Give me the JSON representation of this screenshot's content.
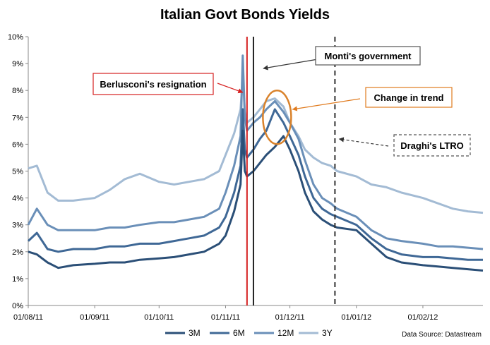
{
  "chart_data": {
    "type": "line",
    "title": "Italian Govt Bonds Yields",
    "source": "Data Source: Datastream",
    "xlabel": "",
    "ylabel": "",
    "x_range": [
      "01/08/11",
      "29/02/12"
    ],
    "x_ticks": [
      "01/08/11",
      "01/09/11",
      "01/10/11",
      "01/11/11",
      "01/12/11",
      "01/01/12",
      "01/02/12"
    ],
    "ylim": [
      0,
      10
    ],
    "y_ticks": [
      "0%",
      "1%",
      "2%",
      "3%",
      "4%",
      "5%",
      "6%",
      "7%",
      "8%",
      "9%",
      "10%"
    ],
    "grid": false,
    "legend_position": "bottom",
    "series": [
      {
        "name": "3M",
        "color": "#2b4f77",
        "x": [
          "01/08/11",
          "05/08/11",
          "10/08/11",
          "15/08/11",
          "22/08/11",
          "01/09/11",
          "08/09/11",
          "15/09/11",
          "22/09/11",
          "01/10/11",
          "08/10/11",
          "15/10/11",
          "22/10/11",
          "29/10/11",
          "01/11/11",
          "05/11/11",
          "08/11/11",
          "09/11/11",
          "10/11/11",
          "11/11/11",
          "14/11/11",
          "17/11/11",
          "20/11/11",
          "24/11/11",
          "28/11/11",
          "01/12/11",
          "05/12/11",
          "08/12/11",
          "12/12/11",
          "16/12/11",
          "20/12/11",
          "23/12/11",
          "01/01/12",
          "08/01/12",
          "15/01/12",
          "22/01/12",
          "01/02/12",
          "08/02/12",
          "15/02/12",
          "22/02/12",
          "29/02/12"
        ],
        "y": [
          2.0,
          1.9,
          1.6,
          1.4,
          1.5,
          1.55,
          1.6,
          1.6,
          1.7,
          1.75,
          1.8,
          1.9,
          2.0,
          2.3,
          2.6,
          3.5,
          4.5,
          6.5,
          5.0,
          4.8,
          5.0,
          5.3,
          5.6,
          5.9,
          6.3,
          5.8,
          5.0,
          4.2,
          3.5,
          3.2,
          3.0,
          2.9,
          2.8,
          2.3,
          1.8,
          1.6,
          1.5,
          1.45,
          1.4,
          1.35,
          1.3
        ]
      },
      {
        "name": "6M",
        "color": "#3f6896",
        "x": [
          "01/08/11",
          "05/08/11",
          "10/08/11",
          "15/08/11",
          "22/08/11",
          "01/09/11",
          "08/09/11",
          "15/09/11",
          "22/09/11",
          "01/10/11",
          "08/10/11",
          "15/10/11",
          "22/10/11",
          "29/10/11",
          "01/11/11",
          "05/11/11",
          "08/11/11",
          "09/11/11",
          "10/11/11",
          "11/11/11",
          "14/11/11",
          "17/11/11",
          "20/11/11",
          "24/11/11",
          "28/11/11",
          "01/12/11",
          "05/12/11",
          "08/12/11",
          "12/12/11",
          "16/12/11",
          "20/12/11",
          "23/12/11",
          "01/01/12",
          "08/01/12",
          "15/01/12",
          "22/01/12",
          "01/02/12",
          "08/02/12",
          "15/02/12",
          "22/02/12",
          "29/02/12"
        ],
        "y": [
          2.4,
          2.7,
          2.1,
          2.0,
          2.1,
          2.1,
          2.2,
          2.2,
          2.3,
          2.3,
          2.4,
          2.5,
          2.6,
          2.9,
          3.3,
          4.2,
          5.2,
          7.3,
          5.8,
          5.5,
          5.8,
          6.2,
          6.5,
          7.3,
          6.8,
          6.3,
          5.6,
          4.8,
          4.0,
          3.6,
          3.4,
          3.3,
          3.0,
          2.5,
          2.1,
          1.9,
          1.8,
          1.8,
          1.75,
          1.7,
          1.7
        ]
      },
      {
        "name": "12M",
        "color": "#6a8fb8",
        "x": [
          "01/08/11",
          "05/08/11",
          "10/08/11",
          "15/08/11",
          "22/08/11",
          "01/09/11",
          "08/09/11",
          "15/09/11",
          "22/09/11",
          "01/10/11",
          "08/10/11",
          "15/10/11",
          "22/10/11",
          "29/10/11",
          "01/11/11",
          "05/11/11",
          "08/11/11",
          "09/11/11",
          "10/11/11",
          "11/11/11",
          "14/11/11",
          "17/11/11",
          "20/11/11",
          "24/11/11",
          "28/11/11",
          "01/12/11",
          "05/12/11",
          "08/12/11",
          "12/12/11",
          "16/12/11",
          "20/12/11",
          "23/12/11",
          "01/01/12",
          "08/01/12",
          "15/01/12",
          "22/01/12",
          "01/02/12",
          "08/02/12",
          "15/02/12",
          "22/02/12",
          "29/02/12"
        ],
        "y": [
          3.0,
          3.6,
          3.0,
          2.8,
          2.8,
          2.8,
          2.9,
          2.9,
          3.0,
          3.1,
          3.1,
          3.2,
          3.3,
          3.6,
          4.2,
          5.2,
          6.3,
          9.3,
          7.0,
          6.5,
          6.8,
          7.0,
          7.3,
          7.6,
          7.2,
          6.8,
          6.2,
          5.4,
          4.5,
          4.0,
          3.8,
          3.6,
          3.3,
          2.8,
          2.5,
          2.4,
          2.3,
          2.2,
          2.2,
          2.15,
          2.1
        ]
      },
      {
        "name": "3Y",
        "color": "#a3bbd4",
        "x": [
          "01/08/11",
          "05/08/11",
          "10/08/11",
          "15/08/11",
          "22/08/11",
          "01/09/11",
          "08/09/11",
          "15/09/11",
          "22/09/11",
          "01/10/11",
          "08/10/11",
          "15/10/11",
          "22/10/11",
          "29/10/11",
          "01/11/11",
          "05/11/11",
          "08/11/11",
          "09/11/11",
          "10/11/11",
          "11/11/11",
          "14/11/11",
          "17/11/11",
          "20/11/11",
          "24/11/11",
          "28/11/11",
          "01/12/11",
          "05/12/11",
          "08/12/11",
          "12/12/11",
          "16/12/11",
          "20/12/11",
          "23/12/11",
          "01/01/12",
          "08/01/12",
          "15/01/12",
          "22/01/12",
          "01/02/12",
          "08/02/12",
          "15/02/12",
          "22/02/12",
          "29/02/12"
        ],
        "y": [
          5.1,
          5.2,
          4.2,
          3.9,
          3.9,
          4.0,
          4.3,
          4.7,
          4.9,
          4.6,
          4.5,
          4.6,
          4.7,
          5.0,
          5.6,
          6.4,
          7.3,
          8.5,
          7.2,
          6.8,
          7.0,
          7.3,
          7.6,
          7.7,
          7.4,
          6.8,
          6.3,
          5.8,
          5.5,
          5.3,
          5.2,
          5.0,
          4.8,
          4.5,
          4.4,
          4.2,
          4.0,
          3.8,
          3.6,
          3.5,
          3.45
        ]
      }
    ],
    "vlines": [
      {
        "name": "berlusconi-line",
        "x": "11/11/11",
        "color": "#d62020",
        "dash": false
      },
      {
        "name": "monti-line",
        "x": "14/11/11",
        "color": "#222222",
        "dash": false
      },
      {
        "name": "ltro-line",
        "x": "22/12/11",
        "color": "#333333",
        "dash": true
      }
    ],
    "annotations": [
      {
        "text": "Monti's government",
        "border": "#555555",
        "dashed": false
      },
      {
        "text": "Berlusconi's resignation",
        "border": "#d62020",
        "dashed": false
      },
      {
        "text": "Change in trend",
        "border": "#e07b1f",
        "dashed": false
      },
      {
        "text": "Draghi's LTRO",
        "border": "#555555",
        "dashed": true
      }
    ],
    "highlight_ellipse_color": "#d9822b"
  }
}
